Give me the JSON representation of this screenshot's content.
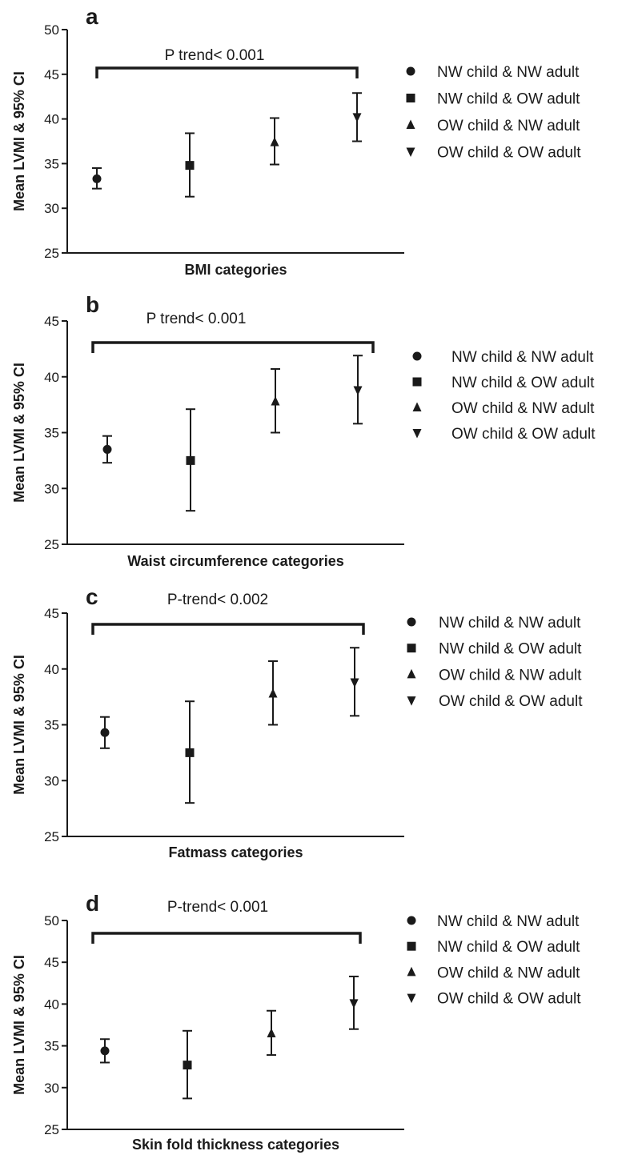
{
  "chart_data": [
    {
      "type": "scatter",
      "panel_label": "a",
      "ylabel": "Mean LVMI & 95% CI",
      "xlabel": "BMI categories",
      "ylim": [
        25,
        50
      ],
      "yticks": [
        25,
        30,
        35,
        40,
        45,
        50
      ],
      "trend_label": "P trend< 0.001",
      "legend": [
        "NW child & NW adult",
        "NW child & OW adult",
        "OW child & NW adult",
        "OW child & OW adult"
      ],
      "markers": [
        "circle",
        "square",
        "triangle-up",
        "triangle-down"
      ],
      "series": [
        {
          "name": "NW child & NW adult",
          "mean": 33.3,
          "lower": 32.2,
          "upper": 34.5
        },
        {
          "name": "NW child & OW adult",
          "mean": 34.8,
          "lower": 31.3,
          "upper": 38.4
        },
        {
          "name": "OW child & NW adult",
          "mean": 37.4,
          "lower": 34.9,
          "upper": 40.1
        },
        {
          "name": "OW child & OW adult",
          "mean": 40.2,
          "lower": 37.5,
          "upper": 42.9
        }
      ],
      "grid": false
    },
    {
      "type": "scatter",
      "panel_label": "b",
      "ylabel": "Mean LVMI & 95% CI",
      "xlabel": "Waist circumference categories",
      "ylim": [
        25,
        45
      ],
      "yticks": [
        25,
        30,
        35,
        40,
        45
      ],
      "trend_label": "P trend< 0.001",
      "legend": [
        "NW child & NW adult",
        "NW child & OW adult",
        "OW child & NW adult",
        "OW child & OW adult"
      ],
      "markers": [
        "circle",
        "square",
        "triangle-up",
        "triangle-down"
      ],
      "series": [
        {
          "name": "NW child & NW adult",
          "mean": 33.5,
          "lower": 32.3,
          "upper": 34.7
        },
        {
          "name": "NW child & OW adult",
          "mean": 32.5,
          "lower": 28.0,
          "upper": 37.1
        },
        {
          "name": "OW child & NW adult",
          "mean": 37.8,
          "lower": 35.0,
          "upper": 40.7
        },
        {
          "name": "OW child & OW adult",
          "mean": 38.8,
          "lower": 35.8,
          "upper": 41.9
        }
      ],
      "grid": false
    },
    {
      "type": "scatter",
      "panel_label": "c",
      "ylabel": "Mean LVMI & 95% CI",
      "xlabel": "Fatmass categories",
      "ylim": [
        25,
        45
      ],
      "yticks": [
        25,
        30,
        35,
        40,
        45
      ],
      "trend_label": "P-trend< 0.002",
      "legend": [
        "NW child & NW  adult",
        "NW child & OW adult",
        "OW child & NW adult",
        "OW child & OW adult"
      ],
      "markers": [
        "circle",
        "square",
        "triangle-up",
        "triangle-down"
      ],
      "series": [
        {
          "name": "NW child & NW  adult",
          "mean": 34.3,
          "lower": 32.9,
          "upper": 35.7
        },
        {
          "name": "NW child & OW adult",
          "mean": 32.5,
          "lower": 28.0,
          "upper": 37.1
        },
        {
          "name": "OW child & NW adult",
          "mean": 37.8,
          "lower": 35.0,
          "upper": 40.7
        },
        {
          "name": "OW child & OW adult",
          "mean": 38.8,
          "lower": 35.8,
          "upper": 41.9
        }
      ],
      "grid": false
    },
    {
      "type": "scatter",
      "panel_label": "d",
      "ylabel": "Mean LVMI & 95% CI",
      "xlabel": "Skin fold thickness categories",
      "ylim": [
        25,
        50
      ],
      "yticks": [
        25,
        30,
        35,
        40,
        45,
        50
      ],
      "trend_label": "P-trend< 0.001",
      "legend": [
        "NW child & NW adult",
        "NW child & OW adult",
        "OW child & NW adult",
        "OW child & OW adult"
      ],
      "markers": [
        "circle",
        "square",
        "triangle-up",
        "triangle-down"
      ],
      "series": [
        {
          "name": "NW child & NW adult",
          "mean": 34.4,
          "lower": 33.0,
          "upper": 35.8
        },
        {
          "name": "NW child & OW adult",
          "mean": 32.7,
          "lower": 28.7,
          "upper": 36.8
        },
        {
          "name": "OW child & NW adult",
          "mean": 36.5,
          "lower": 33.9,
          "upper": 39.2
        },
        {
          "name": "OW child & OW adult",
          "mean": 40.1,
          "lower": 37.0,
          "upper": 43.3
        }
      ],
      "grid": false
    }
  ],
  "colors": {
    "ink": "#1a1a1a",
    "background": "#ffffff"
  }
}
